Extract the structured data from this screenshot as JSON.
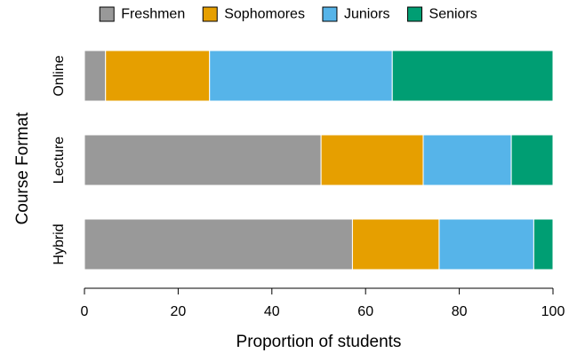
{
  "chart_data": {
    "type": "bar",
    "orientation": "horizontal",
    "stacked": true,
    "xlabel": "Proportion of students",
    "ylabel": "Course Format",
    "xlim": [
      0,
      100
    ],
    "xticks": [
      0,
      20,
      40,
      60,
      80,
      100
    ],
    "grid": false,
    "legend_position": "top",
    "categories": [
      "Online",
      "Lecture",
      "Hybrid"
    ],
    "series": [
      {
        "name": "Freshmen",
        "color": "#999999",
        "values": [
          4.5,
          50.5,
          57.2
        ]
      },
      {
        "name": "Sophomores",
        "color": "#E69F00",
        "values": [
          22.2,
          21.8,
          18.5
        ]
      },
      {
        "name": "Juniors",
        "color": "#56B4E9",
        "values": [
          39.0,
          18.8,
          20.2
        ]
      },
      {
        "name": "Seniors",
        "color": "#009E73",
        "values": [
          34.3,
          8.9,
          4.1
        ]
      }
    ]
  }
}
